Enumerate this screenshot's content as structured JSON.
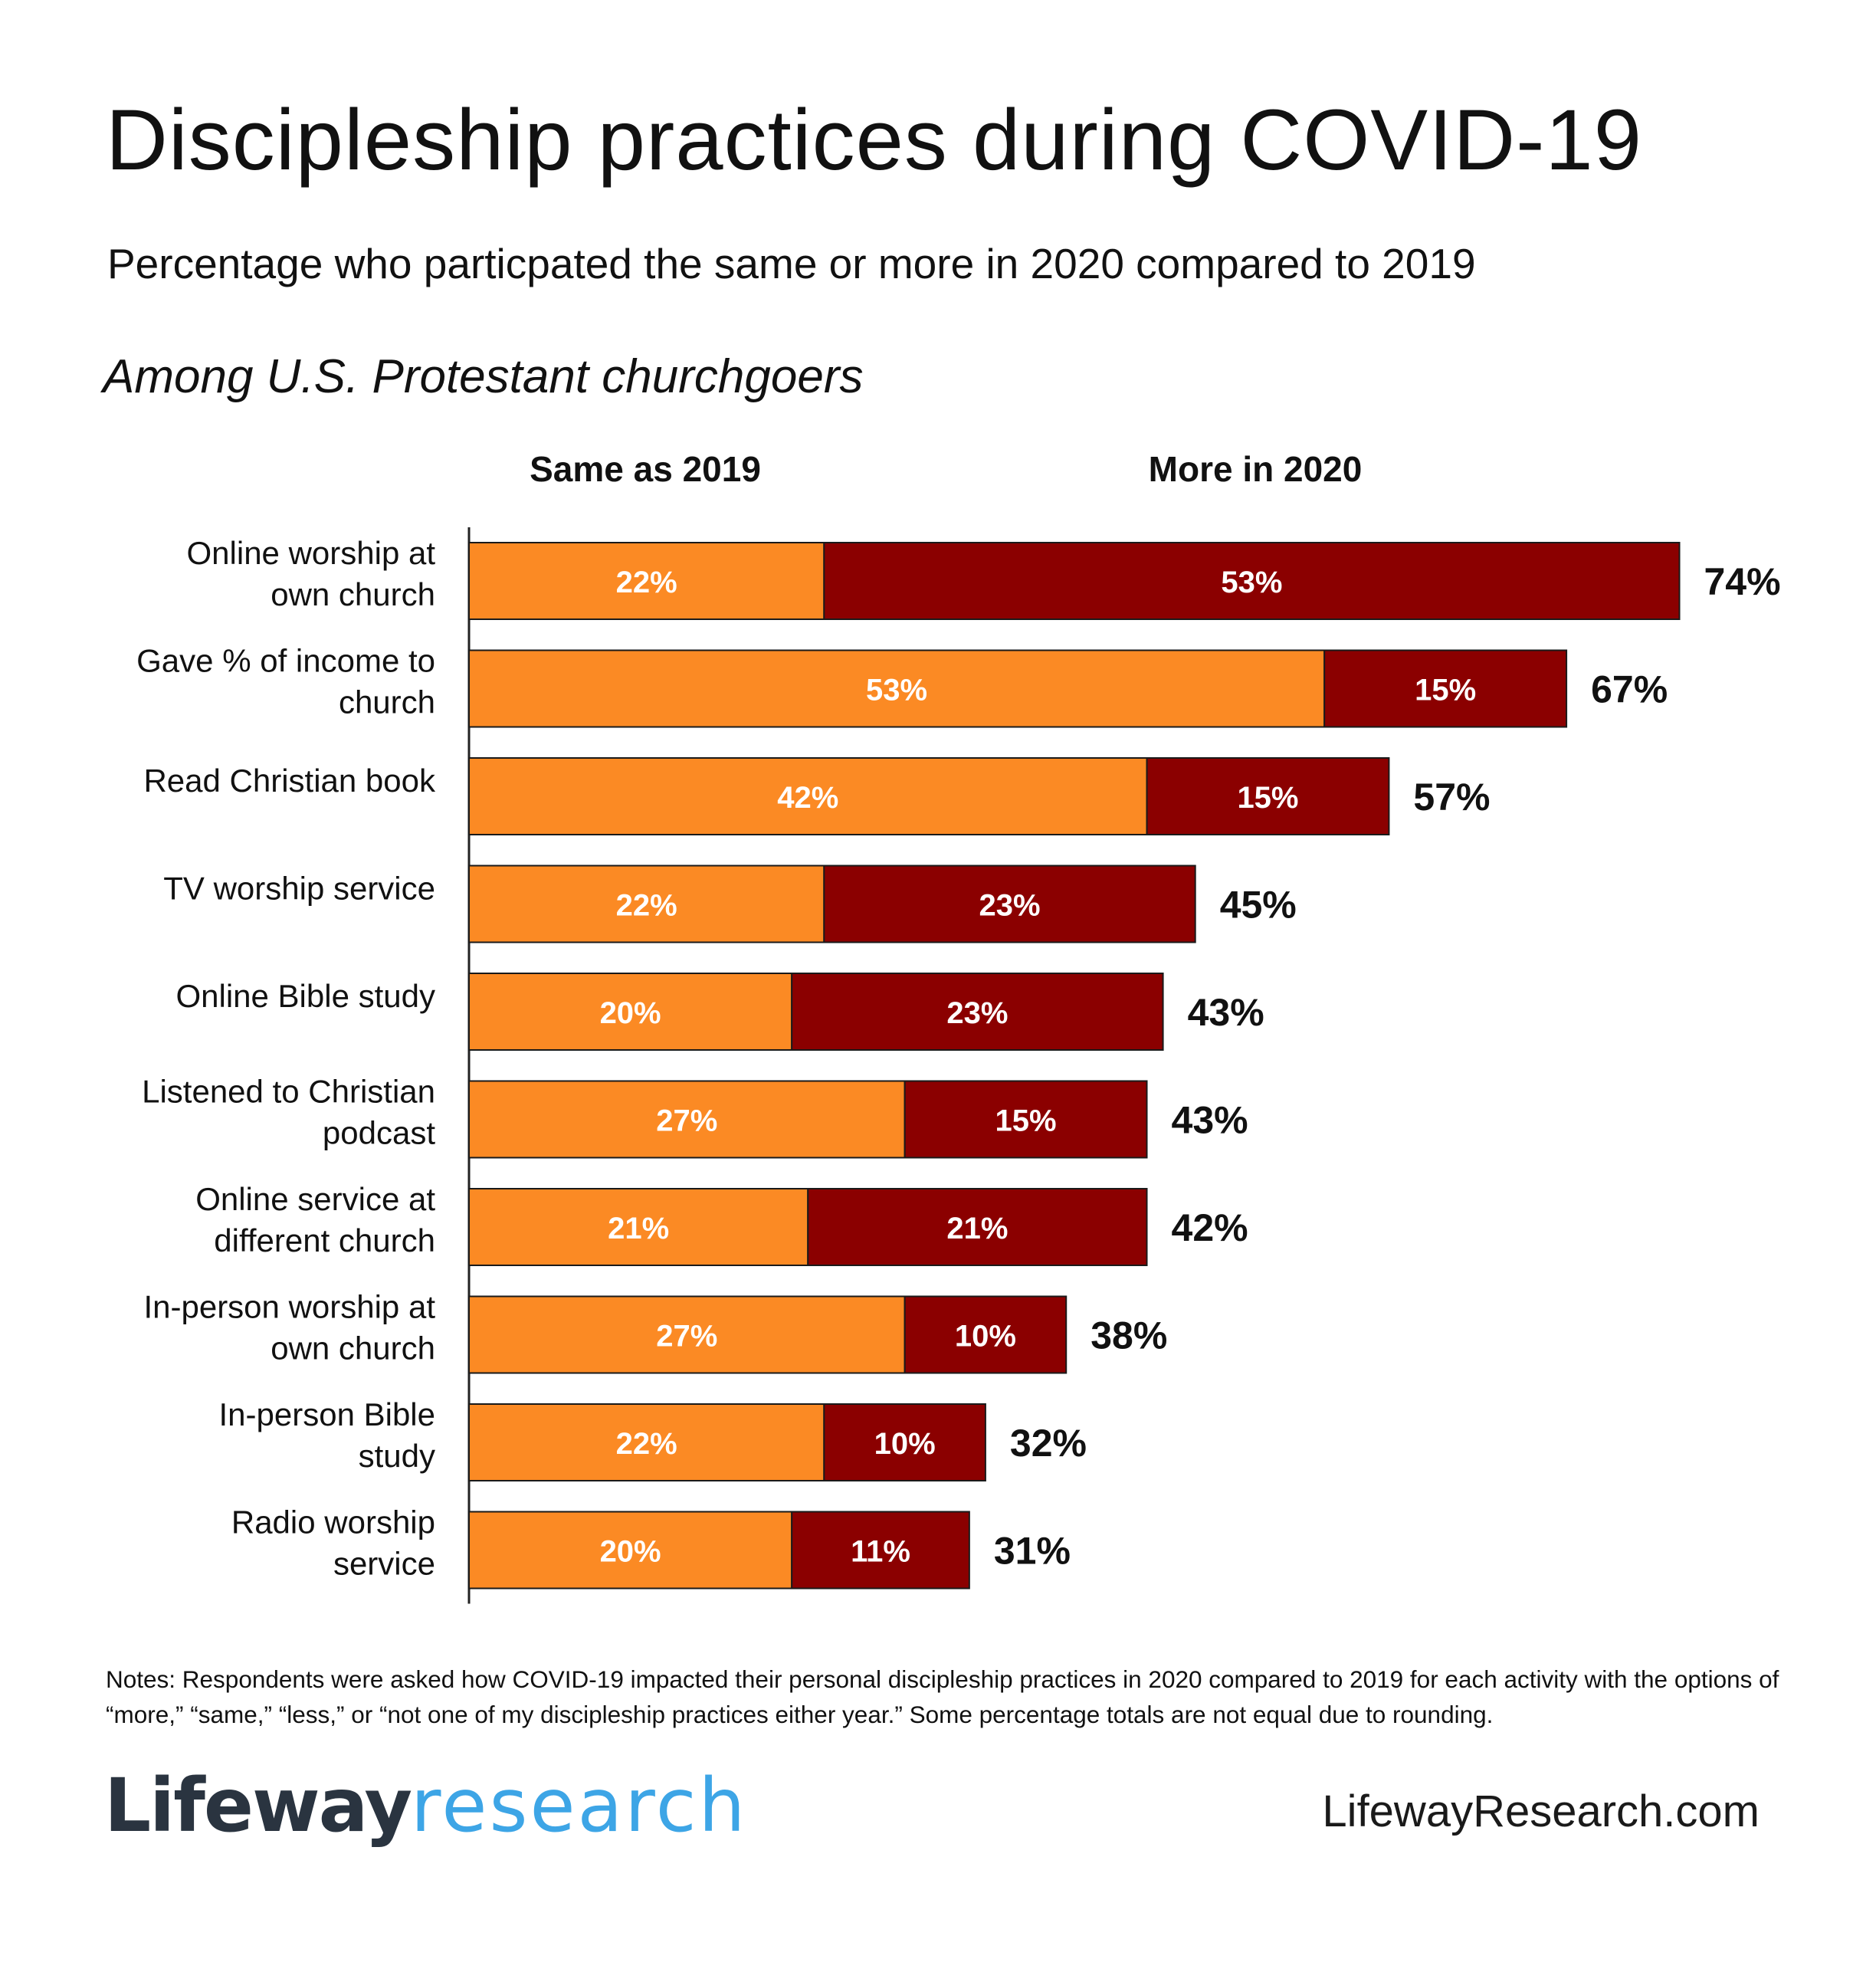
{
  "header": {
    "title": "Discipleship practices during COVID-19",
    "subtitle": "Percentage who particpated the same or more in 2020 compared to 2019",
    "population": "Among U.S. Protestant churchgoers"
  },
  "chart_data": {
    "type": "bar",
    "orientation": "horizontal",
    "stacked": true,
    "categories": [
      "Online worship at own church",
      "Gave % of income to church",
      "Read Christian book",
      "TV worship service",
      "Online Bible study",
      "Listened to Christian podcast",
      "Online service at different church",
      "In-person worship at own church",
      "In-person Bible study",
      "Radio worship service"
    ],
    "category_label_lines": [
      [
        "Online worship at",
        "own church"
      ],
      [
        "Gave % of income to",
        "church"
      ],
      [
        "Read Christian book"
      ],
      [
        "TV worship service"
      ],
      [
        "Online Bible study"
      ],
      [
        "Listened to Christian",
        "podcast"
      ],
      [
        "Online service at",
        "different church"
      ],
      [
        "In-person worship at",
        "own church"
      ],
      [
        "In-person Bible",
        "study"
      ],
      [
        "Radio worship",
        "service"
      ]
    ],
    "series": [
      {
        "name": "Same as 2019",
        "color": "#fb8a24",
        "values": [
          22,
          53,
          42,
          22,
          20,
          27,
          21,
          27,
          22,
          20
        ]
      },
      {
        "name": "More in 2020",
        "color": "#8b0000",
        "values": [
          53,
          15,
          15,
          23,
          23,
          15,
          21,
          10,
          10,
          11
        ]
      }
    ],
    "totals": [
      74,
      67,
      57,
      45,
      43,
      43,
      42,
      38,
      32,
      31
    ],
    "value_suffix": "%",
    "legend_position": "top",
    "grid": false
  },
  "notes": "Notes: Respondents were asked how COVID-19 impacted their personal discipleship practices in 2020 compared to 2019 for each activity with the options of “more,” “same,” “less,” or “not one of my discipleship practices either year.” Some percentage totals are not equal due to rounding.",
  "footer": {
    "logo_word1": "Lifeway",
    "logo_word2": "research",
    "url": "LifewayResearch.com"
  }
}
